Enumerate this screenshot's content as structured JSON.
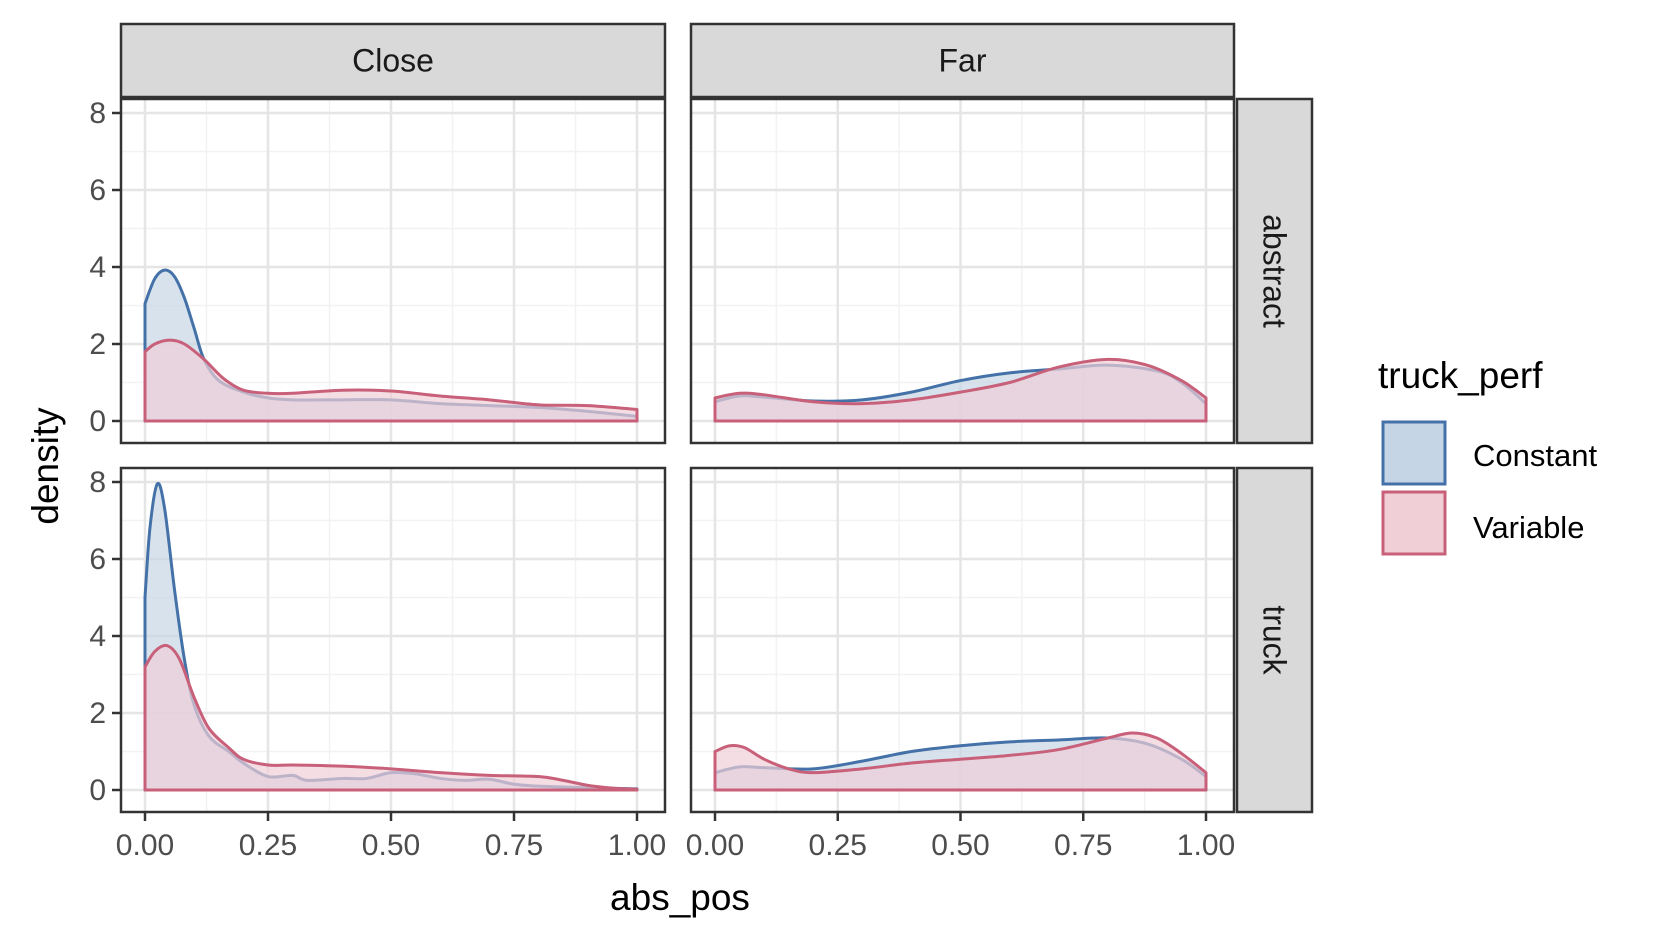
{
  "chart_data": {
    "type": "area",
    "subtype": "density",
    "xlabel": "abs_pos",
    "ylabel": "density",
    "xlim": [
      0,
      1
    ],
    "ylim": [
      0,
      8
    ],
    "x_ticks": [
      0,
      0.25,
      0.5,
      0.75,
      1
    ],
    "x_tick_labels": [
      "0.00",
      "0.25",
      "0.50",
      "0.75",
      "1.00"
    ],
    "y_ticks": [
      0,
      2,
      4,
      6,
      8
    ],
    "y_tick_labels": [
      "0",
      "2",
      "4",
      "6",
      "8"
    ],
    "grid": true,
    "facet_columns": [
      "Close",
      "Far"
    ],
    "facet_rows": [
      "abstract",
      "truck"
    ],
    "legend": {
      "title": "truck_perf",
      "position": "right",
      "entries": [
        {
          "name": "Constant",
          "line_color": "#4472a8",
          "fill_color": "#c6d5e6"
        },
        {
          "name": "Variable",
          "line_color": "#c8607a",
          "fill_color": "#f0cfd7"
        }
      ]
    },
    "panels": [
      {
        "col": "Close",
        "row": "abstract",
        "series": [
          {
            "name": "Constant",
            "points": [
              [
                0,
                3.05
              ],
              [
                0.02,
                3.7
              ],
              [
                0.04,
                3.92
              ],
              [
                0.06,
                3.75
              ],
              [
                0.08,
                3.2
              ],
              [
                0.1,
                2.4
              ],
              [
                0.12,
                1.6
              ],
              [
                0.15,
                1.05
              ],
              [
                0.2,
                0.75
              ],
              [
                0.25,
                0.6
              ],
              [
                0.3,
                0.55
              ],
              [
                0.4,
                0.55
              ],
              [
                0.5,
                0.55
              ],
              [
                0.6,
                0.45
              ],
              [
                0.7,
                0.4
              ],
              [
                0.8,
                0.35
              ],
              [
                0.9,
                0.25
              ],
              [
                1.0,
                0.12
              ]
            ]
          },
          {
            "name": "Variable",
            "points": [
              [
                0,
                1.8
              ],
              [
                0.02,
                2.0
              ],
              [
                0.05,
                2.1
              ],
              [
                0.08,
                2.0
              ],
              [
                0.12,
                1.6
              ],
              [
                0.16,
                1.1
              ],
              [
                0.2,
                0.8
              ],
              [
                0.25,
                0.72
              ],
              [
                0.3,
                0.72
              ],
              [
                0.4,
                0.8
              ],
              [
                0.5,
                0.78
              ],
              [
                0.6,
                0.65
              ],
              [
                0.7,
                0.55
              ],
              [
                0.8,
                0.42
              ],
              [
                0.9,
                0.4
              ],
              [
                1.0,
                0.3
              ]
            ]
          }
        ]
      },
      {
        "col": "Far",
        "row": "abstract",
        "series": [
          {
            "name": "Constant",
            "points": [
              [
                0,
                0.5
              ],
              [
                0.05,
                0.65
              ],
              [
                0.1,
                0.62
              ],
              [
                0.2,
                0.52
              ],
              [
                0.3,
                0.55
              ],
              [
                0.4,
                0.75
              ],
              [
                0.5,
                1.05
              ],
              [
                0.6,
                1.25
              ],
              [
                0.7,
                1.35
              ],
              [
                0.8,
                1.45
              ],
              [
                0.9,
                1.3
              ],
              [
                0.95,
                1.0
              ],
              [
                1.0,
                0.45
              ]
            ]
          },
          {
            "name": "Variable",
            "points": [
              [
                0,
                0.6
              ],
              [
                0.05,
                0.72
              ],
              [
                0.1,
                0.68
              ],
              [
                0.2,
                0.5
              ],
              [
                0.3,
                0.45
              ],
              [
                0.4,
                0.55
              ],
              [
                0.5,
                0.75
              ],
              [
                0.6,
                1.0
              ],
              [
                0.7,
                1.4
              ],
              [
                0.8,
                1.6
              ],
              [
                0.88,
                1.45
              ],
              [
                0.95,
                1.05
              ],
              [
                1.0,
                0.6
              ]
            ]
          }
        ]
      },
      {
        "col": "Close",
        "row": "truck",
        "series": [
          {
            "name": "Constant",
            "points": [
              [
                0,
                5.0
              ],
              [
                0.01,
                6.8
              ],
              [
                0.025,
                7.95
              ],
              [
                0.04,
                7.3
              ],
              [
                0.06,
                5.2
              ],
              [
                0.08,
                3.4
              ],
              [
                0.1,
                2.2
              ],
              [
                0.13,
                1.4
              ],
              [
                0.17,
                1.0
              ],
              [
                0.2,
                0.7
              ],
              [
                0.25,
                0.35
              ],
              [
                0.3,
                0.38
              ],
              [
                0.33,
                0.25
              ],
              [
                0.4,
                0.3
              ],
              [
                0.45,
                0.3
              ],
              [
                0.5,
                0.45
              ],
              [
                0.55,
                0.42
              ],
              [
                0.6,
                0.3
              ],
              [
                0.65,
                0.25
              ],
              [
                0.7,
                0.28
              ],
              [
                0.75,
                0.15
              ],
              [
                0.8,
                0.1
              ],
              [
                0.9,
                0.06
              ],
              [
                1.0,
                0.03
              ]
            ]
          },
          {
            "name": "Variable",
            "points": [
              [
                0,
                3.2
              ],
              [
                0.02,
                3.6
              ],
              [
                0.045,
                3.75
              ],
              [
                0.07,
                3.4
              ],
              [
                0.1,
                2.4
              ],
              [
                0.13,
                1.6
              ],
              [
                0.17,
                1.1
              ],
              [
                0.2,
                0.8
              ],
              [
                0.25,
                0.65
              ],
              [
                0.3,
                0.65
              ],
              [
                0.4,
                0.62
              ],
              [
                0.5,
                0.55
              ],
              [
                0.6,
                0.45
              ],
              [
                0.7,
                0.38
              ],
              [
                0.8,
                0.35
              ],
              [
                0.85,
                0.25
              ],
              [
                0.9,
                0.12
              ],
              [
                0.95,
                0.05
              ],
              [
                1.0,
                0.02
              ]
            ]
          }
        ]
      },
      {
        "col": "Far",
        "row": "truck",
        "series": [
          {
            "name": "Constant",
            "points": [
              [
                0,
                0.45
              ],
              [
                0.05,
                0.6
              ],
              [
                0.1,
                0.58
              ],
              [
                0.2,
                0.55
              ],
              [
                0.3,
                0.75
              ],
              [
                0.4,
                1.0
              ],
              [
                0.5,
                1.15
              ],
              [
                0.6,
                1.25
              ],
              [
                0.7,
                1.3
              ],
              [
                0.8,
                1.35
              ],
              [
                0.88,
                1.2
              ],
              [
                0.95,
                0.8
              ],
              [
                1.0,
                0.35
              ]
            ]
          },
          {
            "name": "Variable",
            "points": [
              [
                0,
                1.0
              ],
              [
                0.03,
                1.15
              ],
              [
                0.06,
                1.1
              ],
              [
                0.1,
                0.8
              ],
              [
                0.15,
                0.55
              ],
              [
                0.2,
                0.45
              ],
              [
                0.3,
                0.55
              ],
              [
                0.4,
                0.7
              ],
              [
                0.5,
                0.8
              ],
              [
                0.6,
                0.9
              ],
              [
                0.7,
                1.05
              ],
              [
                0.8,
                1.35
              ],
              [
                0.85,
                1.48
              ],
              [
                0.9,
                1.35
              ],
              [
                0.95,
                0.95
              ],
              [
                1.0,
                0.45
              ]
            ]
          }
        ]
      }
    ]
  }
}
